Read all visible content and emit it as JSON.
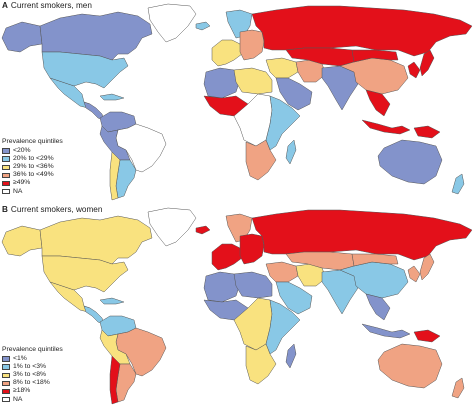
{
  "colors": {
    "q1": "#8393cb",
    "q2": "#89c8e6",
    "q3": "#f9e27f",
    "q4": "#f0a383",
    "q5": "#e3101a",
    "na": "#ffffff",
    "border": "#555555"
  },
  "panels": [
    {
      "letter": "A",
      "title": "Current smokers, men",
      "legend_title": "Prevalence quintiles",
      "legend": [
        {
          "label": "<20%",
          "key": "q1"
        },
        {
          "label": "20% to <29%",
          "key": "q2"
        },
        {
          "label": "29% to <36%",
          "key": "q3"
        },
        {
          "label": "36% to <49%",
          "key": "q4"
        },
        {
          "label": "≥49%",
          "key": "q5"
        },
        {
          "label": "NA",
          "key": "na"
        }
      ],
      "regions": {
        "canada": "q1",
        "usa": "q2",
        "alaska": "q1",
        "greenland": "na",
        "mexico": "q2",
        "central_america": "q1",
        "caribbean": "q2",
        "colombia_venezuela": "q1",
        "brazil": "na",
        "peru_bolivia": "q1",
        "argentina": "q2",
        "chile": "q3",
        "iceland": "q2",
        "scandinavia": "q2",
        "western_europe": "q3",
        "eastern_europe": "q4",
        "russia": "q5",
        "north_africa_west": "q1",
        "north_africa_east": "q3",
        "west_africa": "q5",
        "central_africa": "na",
        "east_africa": "q2",
        "southern_africa": "q4",
        "madagascar": "q2",
        "middle_east": "q3",
        "arabia": "q1",
        "iran": "q4",
        "central_asia": "q5",
        "india": "q1",
        "china": "q4",
        "mongolia": "q5",
        "korea_japan": "q5",
        "southeast_asia": "q5",
        "indonesia": "q5",
        "papua": "q5",
        "australia": "q1",
        "new_zealand": "q2"
      }
    },
    {
      "letter": "B",
      "title": "Current smokers, women",
      "legend_title": "Prevalence quintiles",
      "legend": [
        {
          "label": "<1%",
          "key": "q1"
        },
        {
          "label": "1% to <3%",
          "key": "q2"
        },
        {
          "label": "3% to <8%",
          "key": "q3"
        },
        {
          "label": "8% to <18%",
          "key": "q4"
        },
        {
          "label": "≥18%",
          "key": "q5"
        },
        {
          "label": "NA",
          "key": "na"
        }
      ],
      "regions": {
        "canada": "q3",
        "usa": "q3",
        "alaska": "q3",
        "greenland": "na",
        "mexico": "q3",
        "central_america": "q2",
        "caribbean": "q2",
        "colombia_venezuela": "q2",
        "brazil": "q4",
        "peru_bolivia": "q3",
        "argentina": "q4",
        "chile": "q5",
        "iceland": "q5",
        "scandinavia": "q4",
        "western_europe": "q5",
        "eastern_europe": "q5",
        "russia": "q5",
        "north_africa_west": "q1",
        "north_africa_east": "q1",
        "west_africa": "q1",
        "central_africa": "q3",
        "east_africa": "q2",
        "southern_africa": "q3",
        "madagascar": "q1",
        "middle_east": "q4",
        "arabia": "q2",
        "iran": "q3",
        "central_asia": "q4",
        "india": "q2",
        "china": "q2",
        "mongolia": "q4",
        "korea_japan": "q4",
        "southeast_asia": "q1",
        "indonesia": "q1",
        "papua": "q5",
        "australia": "q4",
        "new_zealand": "q4"
      }
    }
  ]
}
